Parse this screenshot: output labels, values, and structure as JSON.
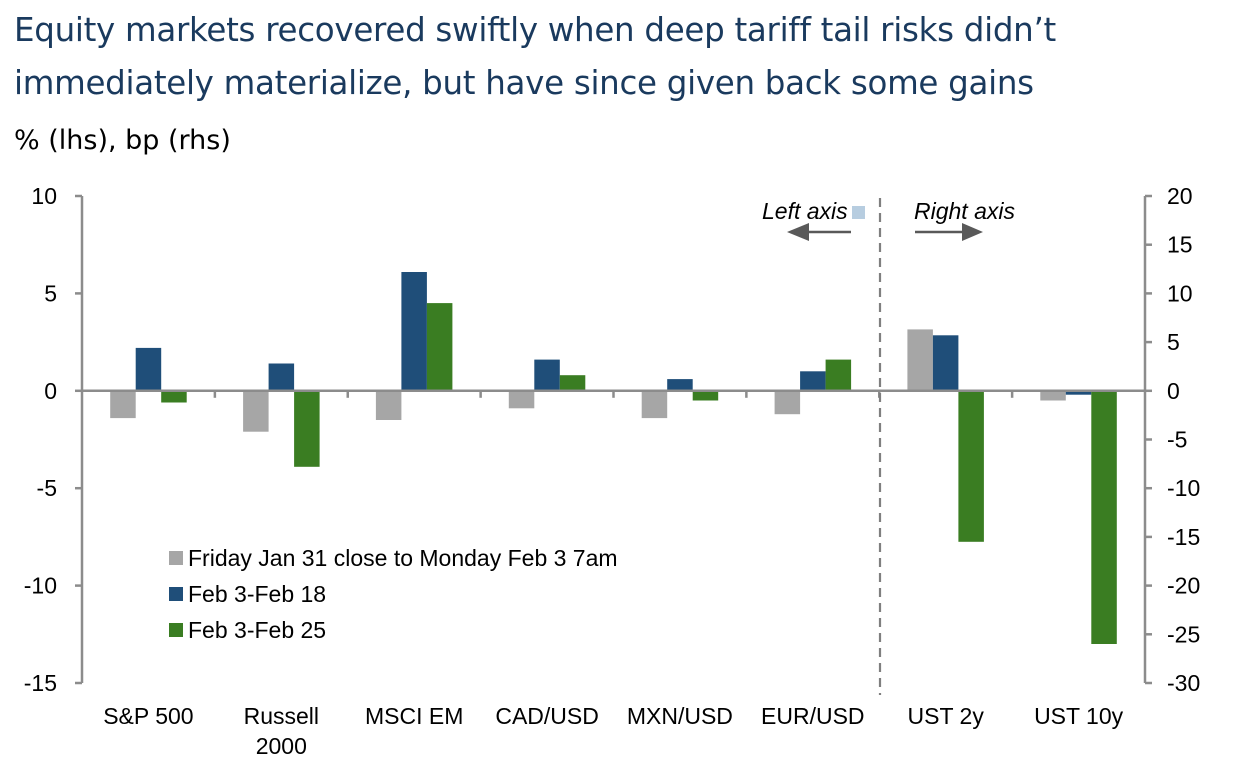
{
  "header": {
    "title_line1": "Equity markets recovered swiftly when deep tariff tail risks didn’t",
    "title_line2": "immediately materialize, but have since given back some gains",
    "subtitle": "% (lhs), bp (rhs)"
  },
  "chart_data": {
    "type": "bar",
    "title": "Equity markets recovered swiftly when deep tariff tail risks didn’t immediately materialize, but have since given back some gains",
    "subtitle": "% (lhs), bp (rhs)",
    "xlabel": "",
    "ylabel_left": "%",
    "ylabel_right": "bp",
    "categories": [
      "S&P 500",
      "Russell 2000",
      "MSCI EM",
      "CAD/USD",
      "MXN/USD",
      "EUR/USD",
      "UST 2y",
      "UST 10y"
    ],
    "category_label_lines": [
      [
        "S&P 500"
      ],
      [
        "Russell",
        "2000"
      ],
      [
        "MSCI EM"
      ],
      [
        "CAD/USD"
      ],
      [
        "MXN/USD"
      ],
      [
        "EUR/USD"
      ],
      [
        "UST 2y"
      ],
      [
        "UST 10y"
      ]
    ],
    "category_axis": [
      "left",
      "left",
      "left",
      "left",
      "left",
      "left",
      "right",
      "right"
    ],
    "series": [
      {
        "name": "Friday Jan 31 close to Monday Feb 3 7am",
        "color": "#a6a6a6",
        "values": [
          -1.4,
          -2.1,
          -1.5,
          -0.9,
          -1.4,
          -1.2,
          6.3,
          -1.0
        ]
      },
      {
        "name": "Feb 3-Feb 18",
        "color": "#1f4e79",
        "values": [
          2.2,
          1.4,
          6.1,
          1.6,
          0.6,
          1.0,
          5.7,
          -0.4
        ]
      },
      {
        "name": "Feb 3-Feb 25",
        "color": "#3a7d22",
        "values": [
          -0.6,
          -3.9,
          4.5,
          0.8,
          -0.5,
          1.6,
          -15.5,
          -26.0
        ]
      }
    ],
    "y_left": {
      "range": [
        -15,
        10
      ],
      "ticks": [
        10,
        5,
        0,
        -5,
        -10,
        -15
      ]
    },
    "y_right": {
      "range": [
        -30,
        20
      ],
      "ticks": [
        20,
        15,
        10,
        5,
        0,
        -5,
        -10,
        -15,
        -20,
        -25,
        -30
      ]
    },
    "grid": false,
    "legend_position": "bottom-left inside plot",
    "annotations": {
      "left_axis": "Left axis",
      "right_axis": "Right axis",
      "divider": "dashed vertical line between EUR/USD and UST 2y"
    }
  }
}
